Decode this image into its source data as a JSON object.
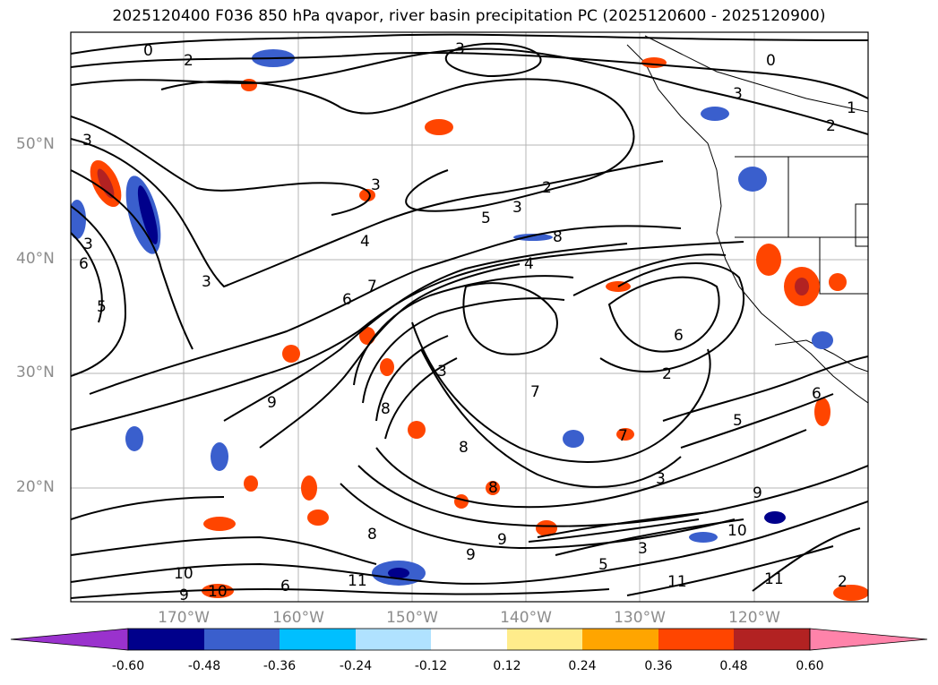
{
  "title": "2025120400 F036 850 hPa qvapor, river basin precipitation PC (2025120600 - 2025120900)",
  "lat_labels": [
    "50°N",
    "40°N",
    "30°N",
    "20°N"
  ],
  "lon_labels": [
    "170°W",
    "160°W",
    "150°W",
    "140°W",
    "130°W",
    "120°W"
  ],
  "colorbar": {
    "tick_labels": [
      "-0.60",
      "-0.48",
      "-0.36",
      "-0.24",
      "-0.12",
      "0.12",
      "0.24",
      "0.36",
      "0.48",
      "0.60"
    ],
    "colors": [
      "#9a32cd",
      "#00008b",
      "#3a5fcd",
      "#00bfff",
      "#b0e2ff",
      "#ffffff",
      "#ffec8b",
      "#ffa500",
      "#ff4500",
      "#b22222",
      "#ff83aa"
    ],
    "extend": "both"
  },
  "contour_labels": [
    "0",
    "2",
    "3",
    "3",
    "0",
    "1",
    "2",
    "3",
    "3",
    "2",
    "3",
    "5",
    "8",
    "4",
    "4",
    "6",
    "7",
    "3",
    "6",
    "6",
    "5",
    "6",
    "5",
    "7",
    "8",
    "3",
    "8",
    "9",
    "9",
    "10",
    "11",
    "10",
    "9",
    "10",
    "11",
    "6",
    "7",
    "5",
    "3",
    "2",
    "3",
    "9",
    "9",
    "8",
    "8",
    "2",
    "3",
    "11"
  ],
  "colors": {
    "contour": "#000000",
    "grid": "#b4b4b4",
    "axis_text": "#8c8c8c"
  }
}
